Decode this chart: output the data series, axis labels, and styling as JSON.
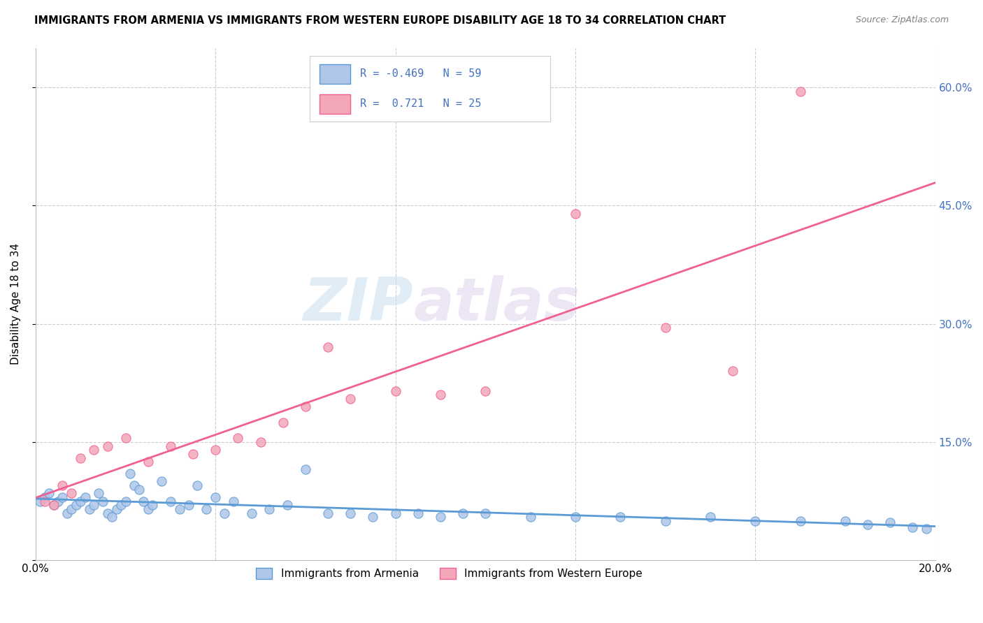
{
  "title": "IMMIGRANTS FROM ARMENIA VS IMMIGRANTS FROM WESTERN EUROPE DISABILITY AGE 18 TO 34 CORRELATION CHART",
  "source": "Source: ZipAtlas.com",
  "ylabel": "Disability Age 18 to 34",
  "xlim": [
    0.0,
    0.2
  ],
  "ylim": [
    0.0,
    0.65
  ],
  "xticks": [
    0.0,
    0.04,
    0.08,
    0.12,
    0.16,
    0.2
  ],
  "yticks": [
    0.0,
    0.15,
    0.3,
    0.45,
    0.6
  ],
  "ytick_labels_right": [
    "",
    "15.0%",
    "30.0%",
    "45.0%",
    "60.0%"
  ],
  "xtick_labels": [
    "0.0%",
    "",
    "",
    "",
    "",
    "20.0%"
  ],
  "armenia_R": -0.469,
  "armenia_N": 59,
  "western_europe_R": 0.721,
  "western_europe_N": 25,
  "armenia_color": "#aec6e8",
  "western_europe_color": "#f4a7b9",
  "armenia_line_color": "#5b9bd5",
  "western_europe_line_color": "#f06090",
  "watermark_zip": "ZIP",
  "watermark_atlas": "atlas",
  "legend_label_armenia": "Immigrants from Armenia",
  "legend_label_western": "Immigrants from Western Europe",
  "armenia_x": [
    0.001,
    0.002,
    0.003,
    0.004,
    0.005,
    0.006,
    0.007,
    0.008,
    0.009,
    0.01,
    0.011,
    0.012,
    0.013,
    0.014,
    0.015,
    0.016,
    0.017,
    0.018,
    0.019,
    0.02,
    0.021,
    0.022,
    0.023,
    0.024,
    0.025,
    0.026,
    0.028,
    0.03,
    0.032,
    0.034,
    0.036,
    0.038,
    0.04,
    0.042,
    0.044,
    0.048,
    0.052,
    0.056,
    0.06,
    0.065,
    0.07,
    0.075,
    0.08,
    0.085,
    0.09,
    0.095,
    0.1,
    0.11,
    0.12,
    0.13,
    0.14,
    0.15,
    0.16,
    0.17,
    0.18,
    0.185,
    0.19,
    0.195,
    0.198
  ],
  "armenia_y": [
    0.075,
    0.08,
    0.085,
    0.07,
    0.075,
    0.08,
    0.06,
    0.065,
    0.07,
    0.075,
    0.08,
    0.065,
    0.07,
    0.085,
    0.075,
    0.06,
    0.055,
    0.065,
    0.07,
    0.075,
    0.11,
    0.095,
    0.09,
    0.075,
    0.065,
    0.07,
    0.1,
    0.075,
    0.065,
    0.07,
    0.095,
    0.065,
    0.08,
    0.06,
    0.075,
    0.06,
    0.065,
    0.07,
    0.115,
    0.06,
    0.06,
    0.055,
    0.06,
    0.06,
    0.055,
    0.06,
    0.06,
    0.055,
    0.055,
    0.055,
    0.05,
    0.055,
    0.05,
    0.05,
    0.05,
    0.045,
    0.048,
    0.042,
    0.04
  ],
  "western_x": [
    0.002,
    0.004,
    0.006,
    0.008,
    0.01,
    0.013,
    0.016,
    0.02,
    0.025,
    0.03,
    0.035,
    0.04,
    0.045,
    0.05,
    0.055,
    0.06,
    0.065,
    0.07,
    0.08,
    0.09,
    0.1,
    0.12,
    0.14,
    0.155,
    0.17
  ],
  "western_y": [
    0.075,
    0.07,
    0.095,
    0.085,
    0.13,
    0.14,
    0.145,
    0.155,
    0.125,
    0.145,
    0.135,
    0.14,
    0.155,
    0.15,
    0.175,
    0.195,
    0.27,
    0.205,
    0.215,
    0.21,
    0.215,
    0.44,
    0.295,
    0.24,
    0.595
  ]
}
